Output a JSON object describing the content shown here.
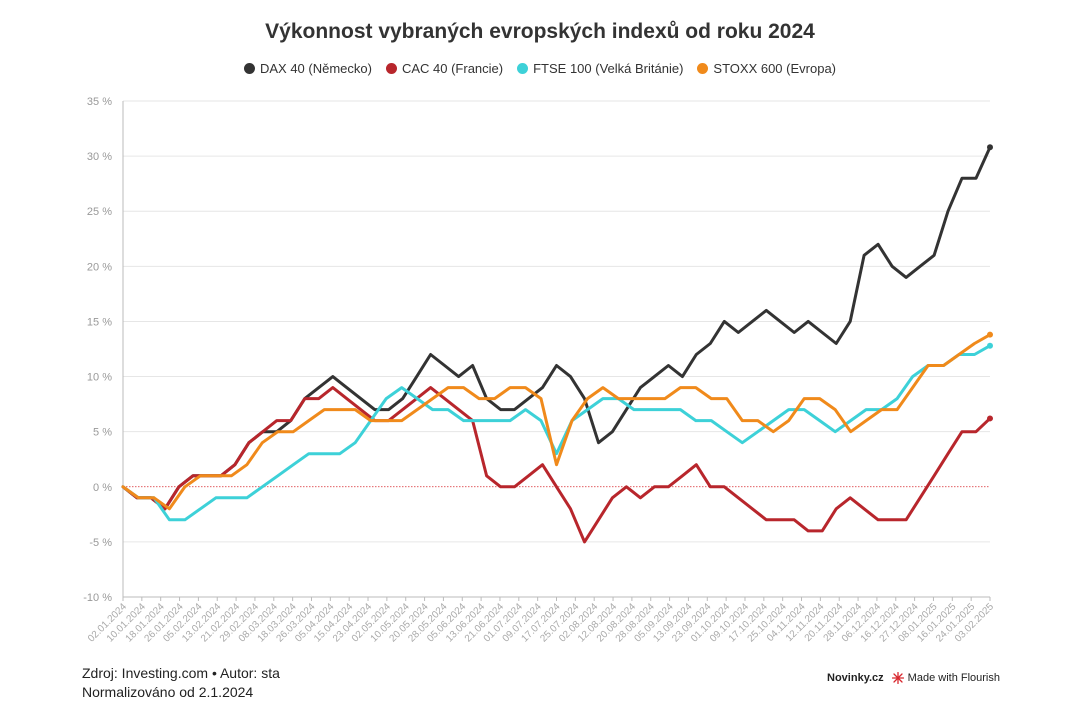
{
  "chart_data": {
    "type": "line",
    "title": "Výkonnost vybraných evropských indexů od roku 2024",
    "ylim": [
      -10,
      35
    ],
    "y_ticks": [
      -10,
      -5,
      0,
      5,
      10,
      15,
      20,
      25,
      30,
      35
    ],
    "y_tick_labels": [
      "-10 %",
      "-5 %",
      "0 %",
      "5 %",
      "10 %",
      "15 %",
      "20 %",
      "25 %",
      "30 %",
      "35 %"
    ],
    "grid": true,
    "legend_position": "top-center",
    "x_tick_labels": [
      "02.01.2024",
      "10.01.2024",
      "18.01.2024",
      "26.01.2024",
      "05.02.2024",
      "13.02.2024",
      "21.02.2024",
      "29.02.2024",
      "08.03.2024",
      "18.03.2024",
      "26.03.2024",
      "05.04.2024",
      "15.04.2024",
      "23.04.2024",
      "02.05.2024",
      "10.05.2024",
      "20.05.2024",
      "28.05.2024",
      "05.06.2024",
      "13.06.2024",
      "21.06.2024",
      "01.07.2024",
      "09.07.2024",
      "17.07.2024",
      "25.07.2024",
      "02.08.2024",
      "12.08.2024",
      "20.08.2024",
      "28.08.2024",
      "05.09.2024",
      "13.09.2024",
      "23.09.2024",
      "01.10.2024",
      "09.10.2024",
      "17.10.2024",
      "25.10.2024",
      "04.11.2024",
      "12.11.2024",
      "20.11.2024",
      "28.11.2024",
      "06.12.2024",
      "16.12.2024",
      "27.12.2024",
      "08.01.2025",
      "16.01.2025",
      "24.01.2025",
      "03.02.2025"
    ],
    "series": [
      {
        "name": "DAX 40 (Německo)",
        "color": "#333333",
        "values": [
          0,
          -1,
          -1,
          -2,
          0,
          1,
          1,
          1,
          2,
          4,
          5,
          5,
          6,
          8,
          9,
          10,
          9,
          8,
          7,
          7,
          8,
          10,
          12,
          11,
          10,
          11,
          8,
          7,
          7,
          8,
          9,
          11,
          10,
          8,
          4,
          5,
          7,
          9,
          10,
          11,
          10,
          12,
          13,
          15,
          14,
          15,
          16,
          15,
          14,
          15,
          14,
          13,
          15,
          21,
          22,
          20,
          19,
          20,
          21,
          25,
          28,
          28,
          30.8
        ]
      },
      {
        "name": "CAC 40 (Francie)",
        "color": "#b8262c",
        "values": [
          0,
          -1,
          -1,
          -2,
          0,
          1,
          1,
          1,
          2,
          4,
          5,
          6,
          6,
          8,
          8,
          9,
          8,
          7,
          6,
          6,
          7,
          8,
          9,
          8,
          7,
          6,
          1,
          0,
          0,
          1,
          2,
          0,
          -2,
          -5,
          -3,
          -1,
          0,
          -1,
          0,
          0,
          1,
          2,
          0,
          0,
          -1,
          -2,
          -3,
          -3,
          -3,
          -4,
          -4,
          -2,
          -1,
          -2,
          -3,
          -3,
          -3,
          -1,
          1,
          3,
          5,
          5,
          6.2
        ]
      },
      {
        "name": "FTSE 100 (Velká Británie)",
        "color": "#3dd1d8",
        "values": [
          0,
          -1,
          -1,
          -3,
          -3,
          -2,
          -1,
          -1,
          -1,
          0,
          1,
          2,
          3,
          3,
          3,
          4,
          6,
          8,
          9,
          8,
          7,
          7,
          6,
          6,
          6,
          6,
          7,
          6,
          3,
          6,
          7,
          8,
          8,
          7,
          7,
          7,
          7,
          6,
          6,
          5,
          4,
          5,
          6,
          7,
          7,
          6,
          5,
          6,
          7,
          7,
          8,
          10,
          11,
          11,
          12,
          12,
          12.8
        ]
      },
      {
        "name": "STOXX 600 (Evropa)",
        "color": "#f08a1b",
        "values": [
          0,
          -1,
          -1,
          -2,
          0,
          1,
          1,
          1,
          2,
          4,
          5,
          5,
          6,
          7,
          7,
          7,
          6,
          6,
          6,
          7,
          8,
          9,
          9,
          8,
          8,
          9,
          9,
          8,
          2,
          6,
          8,
          9,
          8,
          8,
          8,
          8,
          9,
          9,
          8,
          8,
          6,
          6,
          5,
          6,
          8,
          8,
          7,
          5,
          6,
          7,
          7,
          9,
          11,
          11,
          12,
          13,
          13.8
        ]
      }
    ]
  },
  "footer": {
    "source": "Zdroj: Investing.com • Autor: sta",
    "normalized": "Normalizováno od 2.1.2024",
    "brand": "Novinky.cz",
    "made_with": "Made with Flourish"
  }
}
